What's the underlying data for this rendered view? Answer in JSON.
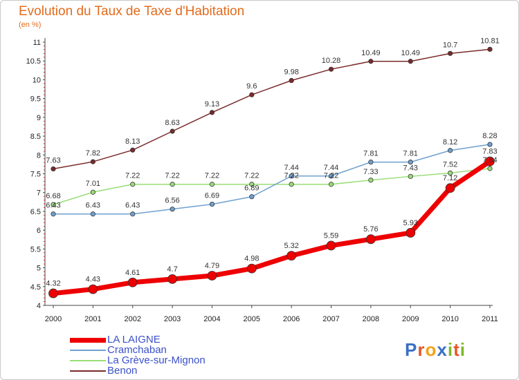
{
  "title": "Evolution du Taux de Taxe d'Habitation",
  "subtitle": "(en %)",
  "logo": {
    "text": "Proxiti",
    "letters": [
      {
        "ch": "P",
        "color": "#3a6fc7"
      },
      {
        "ch": "r",
        "color": "#e5572a"
      },
      {
        "ch": "o",
        "color": "#f3a21b"
      },
      {
        "ch": "x",
        "color": "#3a6fc7"
      },
      {
        "ch": "i",
        "color": "#7bb928"
      },
      {
        "ch": "t",
        "color": "#e5572a"
      },
      {
        "ch": "i",
        "color": "#7bb928"
      }
    ]
  },
  "chart_data": {
    "type": "line",
    "title": "Evolution du Taux de Taxe d'Habitation",
    "subtitle": "(en %)",
    "x": [
      "2000",
      "2001",
      "2002",
      "2003",
      "2004",
      "2005",
      "2006",
      "2007",
      "2008",
      "2009",
      "2010",
      "2011"
    ],
    "ylim": [
      4,
      11
    ],
    "yticks": [
      4,
      4.5,
      5,
      5.5,
      6,
      6.5,
      7,
      7.5,
      8,
      8.5,
      9,
      9.5,
      10,
      10.5,
      11
    ],
    "ytick_labels": [
      "4",
      "4.5",
      "5",
      "5.5",
      "6",
      "6.5",
      "7",
      "7.5",
      "8",
      "8.5",
      "9",
      "9.5",
      "10",
      "10.5",
      "11"
    ],
    "grid": false,
    "legend_position": "bottom-left",
    "series": [
      {
        "name": "LA LAIGNE",
        "color": "#ee0000",
        "values": [
          4.32,
          4.43,
          4.61,
          4.7,
          4.79,
          4.98,
          5.32,
          5.59,
          5.76,
          5.93,
          7.12,
          7.83
        ],
        "labels": [
          "4.32",
          "4.43",
          "4.61",
          "4.7",
          "4.79",
          "4.98",
          "5.32",
          "5.59",
          "5.76",
          "5.93",
          "7.12",
          "7.83"
        ]
      },
      {
        "name": "Cramchaban",
        "color": "#6fa0d0",
        "values": [
          6.43,
          6.43,
          6.43,
          6.56,
          6.69,
          6.89,
          7.44,
          7.44,
          7.81,
          7.81,
          8.12,
          8.28
        ],
        "labels": [
          "6.43",
          "6.43",
          "6.43",
          "6.56",
          "6.69",
          "6.89",
          "7.44",
          "7.44",
          "7.81",
          "7.81",
          "8.12",
          "8.28"
        ]
      },
      {
        "name": "La Grève-sur-Mignon",
        "color": "#99dd77",
        "values": [
          6.68,
          7.01,
          7.22,
          7.22,
          7.22,
          7.22,
          7.22,
          7.22,
          7.33,
          7.43,
          7.52,
          7.64
        ],
        "labels": [
          "6.68",
          "7.01",
          "7.22",
          "7.22",
          "7.22",
          "7.22",
          "7.22",
          "7.22",
          "7.33",
          "7.43",
          "7.52",
          "7.64"
        ]
      },
      {
        "name": "Benon",
        "color": "#7a2a2a",
        "values": [
          7.63,
          7.82,
          8.13,
          8.63,
          9.13,
          9.6,
          9.98,
          10.28,
          10.49,
          10.49,
          10.7,
          10.81
        ],
        "labels": [
          "7.63",
          "7.82",
          "8.13",
          "8.63",
          "9.13",
          "9.6",
          "9.98",
          "10.28",
          "10.49",
          "10.49",
          "10.7",
          "10.81"
        ]
      }
    ]
  }
}
